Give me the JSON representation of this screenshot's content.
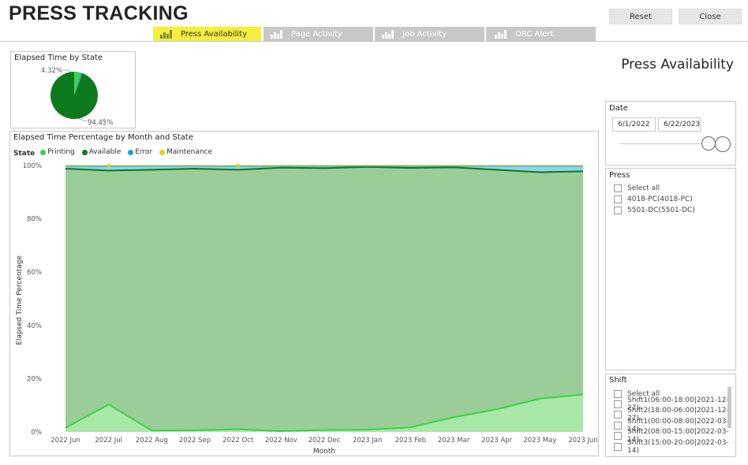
{
  "header": {
    "title": "PRESS TRACKING",
    "reset_label": "Reset",
    "close_label": "Close"
  },
  "tabs": [
    {
      "label": "Press Availability",
      "icon": "bar-chart-icon",
      "active": true
    },
    {
      "label": "Page Activity",
      "icon": "bar-chart-icon",
      "active": false
    },
    {
      "label": "Job Activity",
      "icon": "bar-chart-icon",
      "active": false
    },
    {
      "label": "ORC Alert",
      "icon": "bar-chart-icon",
      "active": false
    }
  ],
  "page_heading": "Press Availability",
  "pie": {
    "title": "Elapsed Time by State",
    "label_small": "4.32%",
    "label_large": "94.45%"
  },
  "area": {
    "title": "Elapsed Time Percentage by Month and State",
    "legend_title": "State",
    "legend": [
      "Printing",
      "Available",
      "Error",
      "Maintenance"
    ]
  },
  "colors": {
    "printing": "#3ad44a",
    "available": "#0e7a1e",
    "error": "#1aa3e0",
    "maintenance": "#f5c518",
    "active_tab": "#f2ef3d"
  },
  "date_slicer": {
    "title": "Date",
    "start": "6/1/2022",
    "end": "6/22/2023"
  },
  "press_slicer": {
    "title": "Press",
    "items": [
      "Select all",
      "4018-PC(4018-PC)",
      "5501-DC(5501-DC)"
    ]
  },
  "shift_slicer": {
    "title": "Shift",
    "items": [
      "Select all",
      "Shift1(06:00-18:00|2021-12-27)",
      "Shift2(18:00-06:00|2021-12-27)",
      "Shift1(00:00-08:00|2022-03-14)",
      "Shift2(08:00-15:00|2022-03-14)",
      "Shift3(15:00-20:00|2022-03-14)"
    ]
  },
  "chart_data": [
    {
      "type": "pie",
      "title": "Elapsed Time by State",
      "slices": [
        {
          "name": "Available",
          "value": 94.45,
          "color": "#0e7a1e"
        },
        {
          "name": "Printing",
          "value": 4.32,
          "color": "#3ad44a"
        },
        {
          "name": "Error",
          "value": 1.1,
          "color": "#1aa3e0"
        },
        {
          "name": "Maintenance",
          "value": 0.13,
          "color": "#f5c518"
        }
      ]
    },
    {
      "type": "area",
      "title": "Elapsed Time Percentage by Month and State",
      "xlabel": "Month",
      "ylabel": "Elapsed Time Percentage",
      "ylim": [
        0,
        100
      ],
      "yticks": [
        "0%",
        "20%",
        "40%",
        "60%",
        "80%",
        "100%"
      ],
      "stacked": true,
      "categories": [
        "2022 Jun",
        "2022 Jul",
        "2022 Aug",
        "2022 Sep",
        "2022 Oct",
        "2022 Nov",
        "2022 Dec",
        "2023 Jan",
        "2023 Feb",
        "2023 Mar",
        "2023 Apr",
        "2023 May",
        "2023 Jun"
      ],
      "series": [
        {
          "name": "Printing",
          "values": [
            1.5,
            10.3,
            0.5,
            0.6,
            1,
            0.3,
            0.7,
            0.8,
            1.7,
            5.5,
            8.5,
            12.5,
            14
          ]
        },
        {
          "name": "Available",
          "values": [
            97.3,
            87.8,
            97.9,
            98.2,
            97.4,
            98.9,
            98.3,
            98.7,
            97.4,
            93.8,
            89.9,
            85,
            83.8
          ]
        },
        {
          "name": "Error",
          "values": [
            1.1,
            1.7,
            1.5,
            1.1,
            1.4,
            0.7,
            0.9,
            0.4,
            0.8,
            0.6,
            1.5,
            2.4,
            2.1
          ]
        },
        {
          "name": "Maintenance",
          "values": [
            0.1,
            0.2,
            0.1,
            0.1,
            0.2,
            0.1,
            0.1,
            0.1,
            0.1,
            0.1,
            0.1,
            0.1,
            0.1
          ]
        }
      ]
    }
  ]
}
